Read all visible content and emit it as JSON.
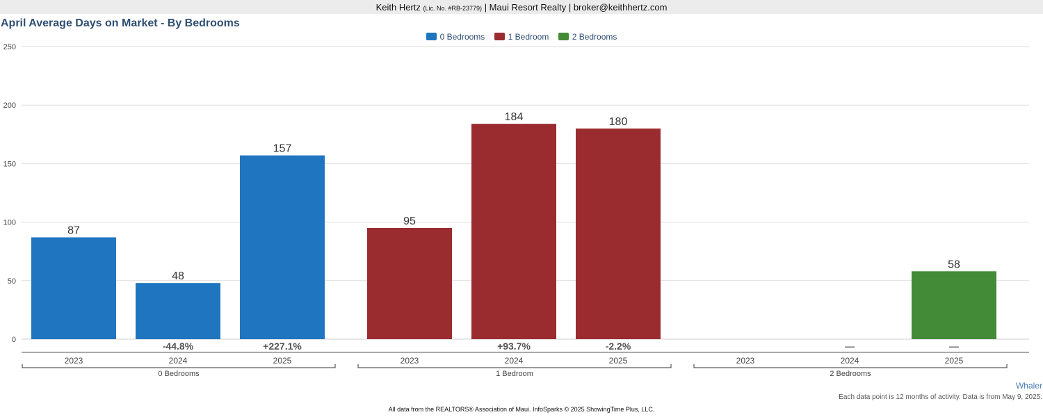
{
  "header": {
    "name": "Keith Hertz",
    "license": "(Lic. No. #RB-23779)",
    "rest": "| Maui Resort Realty | broker@keithhertz.com"
  },
  "colors": {
    "0 Bedrooms": "#1f75bf",
    "1 Bedroom": "#9a2c30",
    "2 Bedrooms": "#438b37"
  },
  "chart_data": {
    "type": "bar",
    "title": "April Average Days on Market - By Bedrooms",
    "xlabel": "",
    "ylabel": "",
    "ylim": [
      0,
      250
    ],
    "yticks": [
      0,
      50,
      100,
      150,
      200,
      250
    ],
    "grid": true,
    "legend_position": "top-center",
    "legend": [
      "0 Bedrooms",
      "1 Bedroom",
      "2 Bedrooms"
    ],
    "groups": [
      {
        "name": "0 Bedrooms",
        "categories": [
          "2023",
          "2024",
          "2025"
        ],
        "values": [
          87,
          48,
          157
        ],
        "changes": [
          "",
          "-44.8%",
          "+227.1%"
        ]
      },
      {
        "name": "1 Bedroom",
        "categories": [
          "2023",
          "2024",
          "2025"
        ],
        "values": [
          95,
          184,
          180
        ],
        "changes": [
          "",
          "+93.7%",
          "-2.2%"
        ]
      },
      {
        "name": "2 Bedrooms",
        "categories": [
          "2023",
          "2024",
          "2025"
        ],
        "values": [
          null,
          null,
          58
        ],
        "changes": [
          "",
          "—",
          "—"
        ]
      }
    ]
  },
  "watermark": "Whaler",
  "note": "Each data point is 12 months of activity. Data is from May 9, 2025.",
  "footer": "All data from the REALTORS® Association of Maui. InfoSparks © 2025 ShowingTime Plus, LLC."
}
